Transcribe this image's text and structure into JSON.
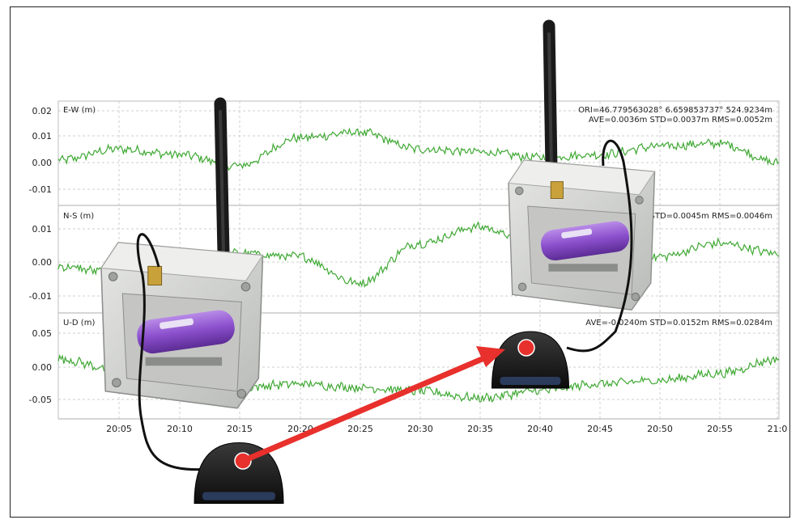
{
  "chart_data": {
    "type": "line",
    "panels": [
      {
        "label": "E-W (m)",
        "yticks": [
          "0.02",
          "0.01",
          "0.00",
          "-0.01"
        ],
        "ylim": [
          -0.015,
          0.02
        ],
        "stats": [
          "ORI=46.779563028° 6.659853737° 524.9234m",
          "AVE=0.0036m STD=0.0037m RMS=0.0052m"
        ]
      },
      {
        "label": "N-S (m)",
        "yticks": [
          "0.01",
          "0.00",
          "-0.01"
        ],
        "ylim": [
          -0.015,
          0.015
        ],
        "stats": [
          "STD=0.0045m RMS=0.0046m"
        ]
      },
      {
        "label": "U-D (m)",
        "yticks": [
          "0.05",
          "0.00",
          "-0.05"
        ],
        "ylim": [
          -0.07,
          0.07
        ],
        "stats": [
          "AVE=-0.0240m STD=0.0152m RMS=0.0284m"
        ]
      }
    ],
    "x_ticks": [
      "20:05",
      "20:10",
      "20:15",
      "20:20",
      "20:25",
      "20:30",
      "20:35",
      "20:40",
      "20:45",
      "20:50",
      "20:55",
      "21:0"
    ],
    "series_color": "#3fa833",
    "grid": true,
    "series": [
      {
        "x": [
          "20:00",
          "20:05",
          "20:10",
          "20:15",
          "20:20",
          "20:25",
          "20:30",
          "20:35",
          "20:40",
          "20:45",
          "20:50",
          "20:55",
          "21:00"
        ],
        "values": [
          0.0,
          0.004,
          0.002,
          -0.002,
          0.008,
          0.01,
          0.004,
          0.003,
          0.001,
          0.002,
          0.005,
          0.006,
          -0.001
        ]
      },
      {
        "x": [
          "20:00",
          "20:05",
          "20:10",
          "20:15",
          "20:20",
          "20:25",
          "20:30",
          "20:35",
          "20:40",
          "20:45",
          "20:50",
          "20:55",
          "21:00"
        ],
        "values": [
          -0.002,
          -0.004,
          -0.001,
          0.002,
          0.001,
          -0.007,
          0.005,
          0.01,
          0.004,
          0.0,
          0.001,
          0.005,
          0.002
        ]
      },
      {
        "x": [
          "20:00",
          "20:05",
          "20:10",
          "20:15",
          "20:20",
          "20:25",
          "20:30",
          "20:35",
          "20:40",
          "20:45",
          "20:50",
          "20:55",
          "21:00"
        ],
        "values": [
          0.01,
          -0.005,
          -0.018,
          -0.03,
          -0.025,
          -0.03,
          -0.035,
          -0.045,
          -0.035,
          -0.025,
          -0.02,
          -0.01,
          0.01
        ]
      }
    ]
  },
  "colors": {
    "plot_line": "#3fa833",
    "grid": "#cfcfcf",
    "arrow": "#e8302c",
    "enclosure": "#d7d8d6",
    "battery": "#8a4fcc",
    "antenna": "#1a1a1a"
  },
  "icons": {
    "enclosure": "gnss-receiver-box",
    "antenna": "antenna",
    "gnss_antenna": "gnss-antenna-puck",
    "arrow": "red-arrow"
  }
}
